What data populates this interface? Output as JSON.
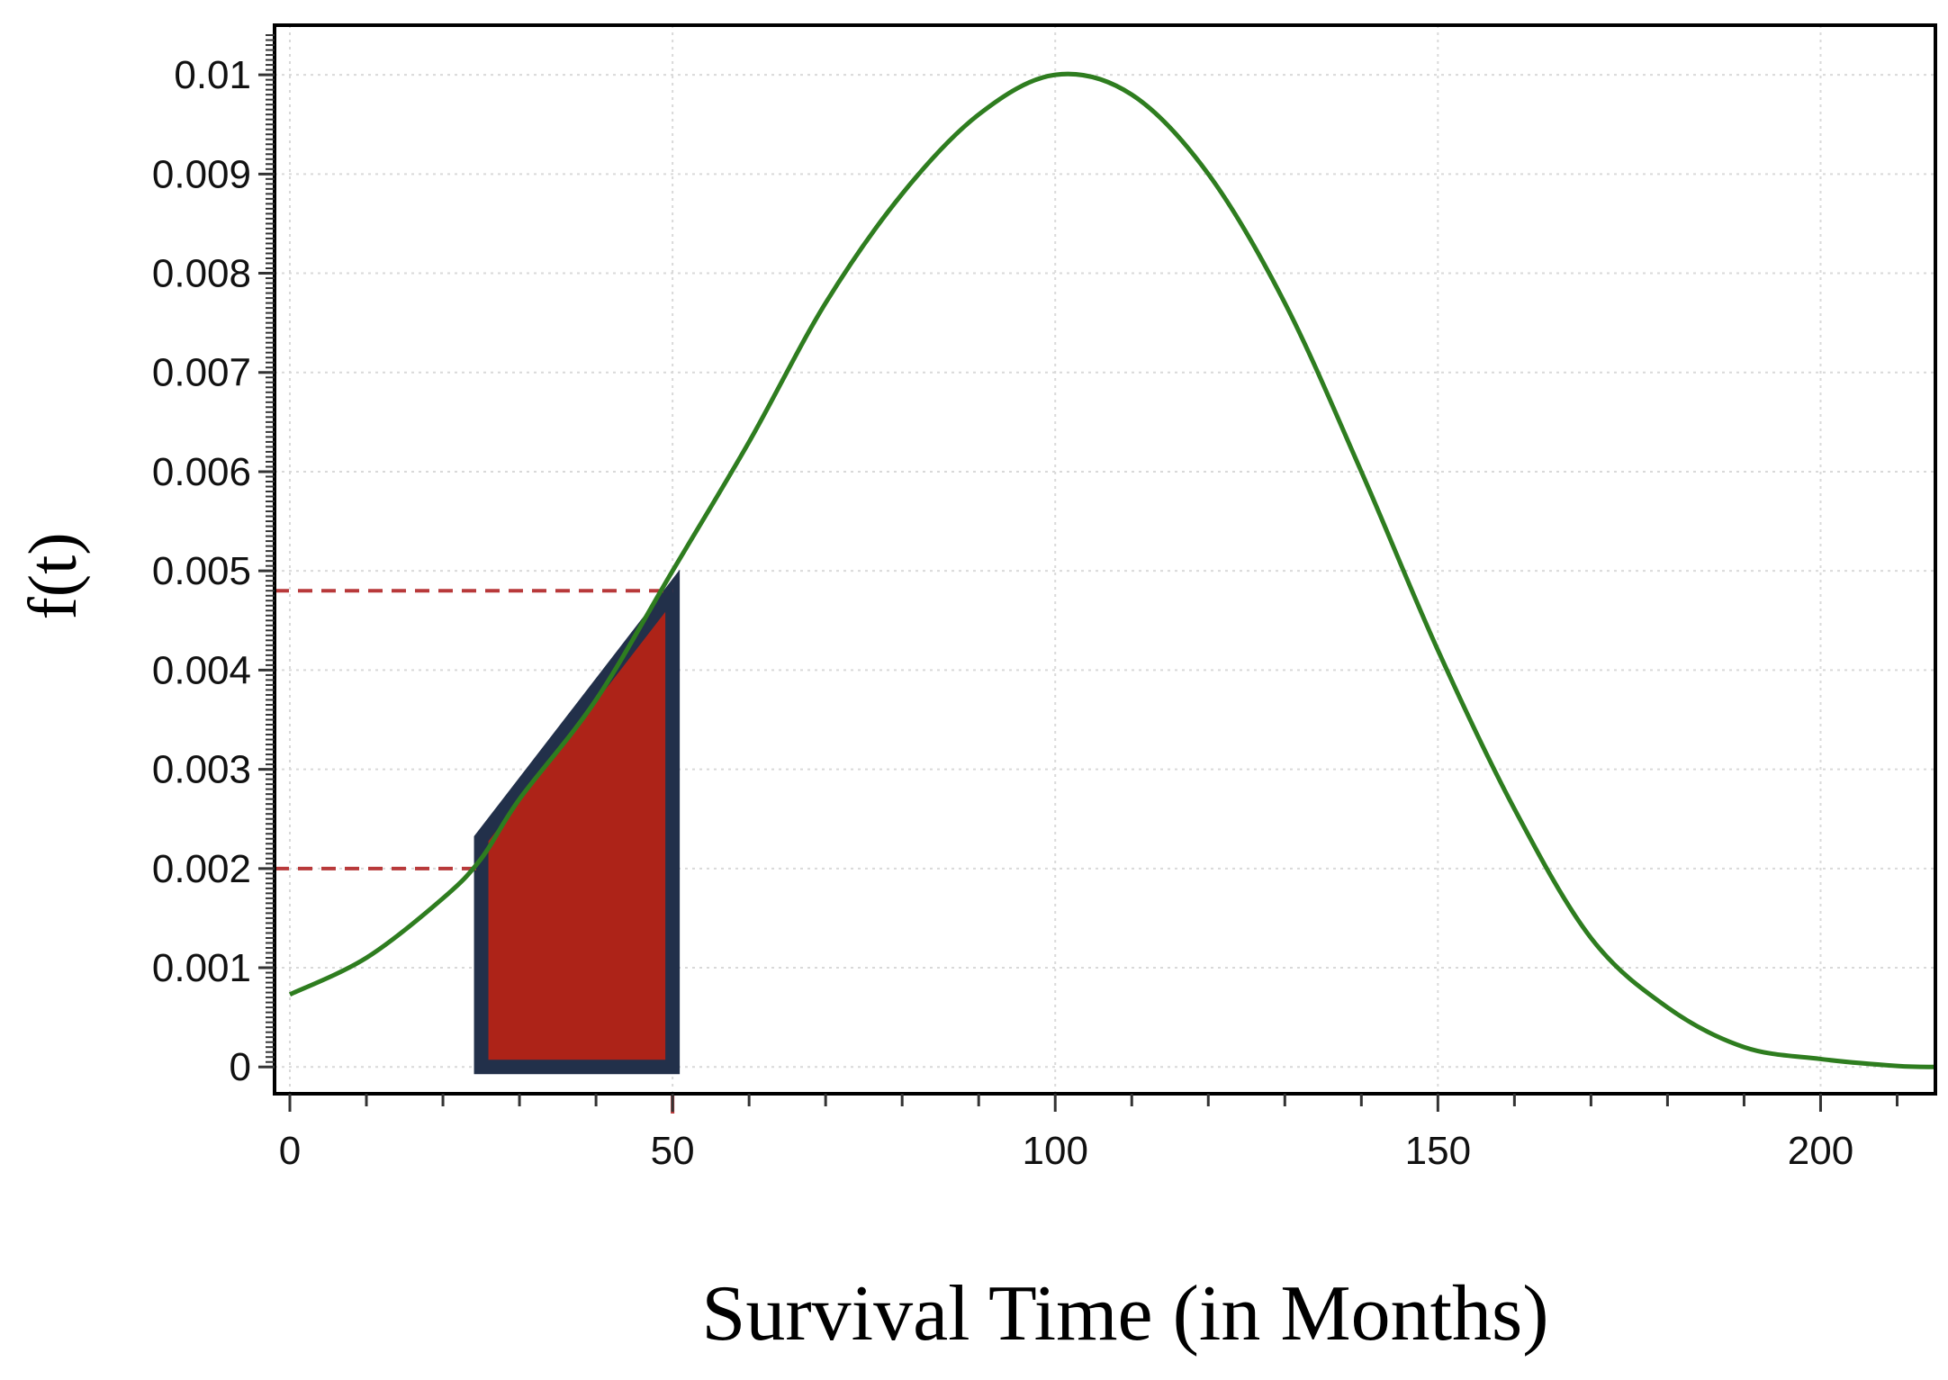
{
  "chart_data": {
    "type": "line",
    "title": "",
    "xlabel": "Survival Time (in Months)",
    "ylabel": "f(t)",
    "xlim": [
      -2,
      215
    ],
    "ylim": [
      -0.00027,
      0.0105
    ],
    "x_ticks": [
      0,
      50,
      100,
      150,
      200
    ],
    "x_tick_labels": [
      "0",
      "50",
      "100",
      "150",
      "200"
    ],
    "y_ticks": [
      0,
      0.001,
      0.002,
      0.003,
      0.004,
      0.005,
      0.006,
      0.007,
      0.008,
      0.009,
      0.01
    ],
    "y_tick_labels": [
      "0",
      "0.001",
      "0.002",
      "0.003",
      "0.004",
      "0.005",
      "0.006",
      "0.007",
      "0.008",
      "0.009",
      "0.01"
    ],
    "grid": true,
    "series": [
      {
        "x": [
          0,
          10,
          20,
          25,
          30,
          40,
          50,
          60,
          70,
          80,
          90,
          100,
          110,
          120,
          130,
          140,
          150,
          160,
          170,
          180,
          190,
          200,
          210,
          215
        ],
        "values": [
          0.00073,
          0.0011,
          0.0017,
          0.0021,
          0.0027,
          0.0037,
          0.005,
          0.0063,
          0.0077,
          0.0088,
          0.0096,
          0.01,
          0.0098,
          0.009,
          0.0077,
          0.006,
          0.0042,
          0.0026,
          0.0013,
          0.0006,
          0.0002,
          8e-05,
          1e-05,
          0.0
        ],
        "color": "#2e7d1f"
      }
    ],
    "shaded_region": {
      "x_start": 25,
      "x_end": 50,
      "y_start": 0.0023,
      "y_end": 0.0048,
      "fill": "#ad2318",
      "stroke": "#22304a"
    },
    "reference_lines": [
      {
        "y": 0.002,
        "x_start": 0,
        "x_end": 25,
        "color": "#b8393a"
      },
      {
        "y": 0.0048,
        "x_start": 0,
        "x_end": 50,
        "color": "#b8393a"
      }
    ]
  }
}
